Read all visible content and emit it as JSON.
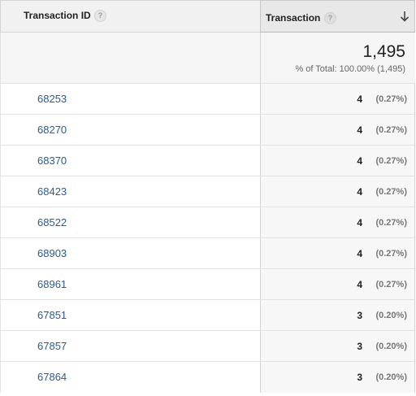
{
  "table": {
    "col_id_header": "Transaction ID",
    "col_metric_header": "Transaction",
    "help_icon": "question-mark-icon",
    "sort_icon": "arrow-down-icon",
    "total": {
      "value": "1,495",
      "subtitle": "% of Total: 100.00% (1,495)"
    },
    "rows": [
      {
        "id": "68253",
        "value": "4",
        "pct": "(0.27%)"
      },
      {
        "id": "68270",
        "value": "4",
        "pct": "(0.27%)"
      },
      {
        "id": "68370",
        "value": "4",
        "pct": "(0.27%)"
      },
      {
        "id": "68423",
        "value": "4",
        "pct": "(0.27%)"
      },
      {
        "id": "68522",
        "value": "4",
        "pct": "(0.27%)"
      },
      {
        "id": "68903",
        "value": "4",
        "pct": "(0.27%)"
      },
      {
        "id": "68961",
        "value": "4",
        "pct": "(0.27%)"
      },
      {
        "id": "67851",
        "value": "3",
        "pct": "(0.20%)"
      },
      {
        "id": "67857",
        "value": "3",
        "pct": "(0.20%)"
      },
      {
        "id": "67864",
        "value": "3",
        "pct": "(0.20%)"
      }
    ]
  },
  "colors": {
    "link": "#2b5b92",
    "header_bg": "#f1f1f1",
    "active_header_bg": "#e8e8e8"
  }
}
